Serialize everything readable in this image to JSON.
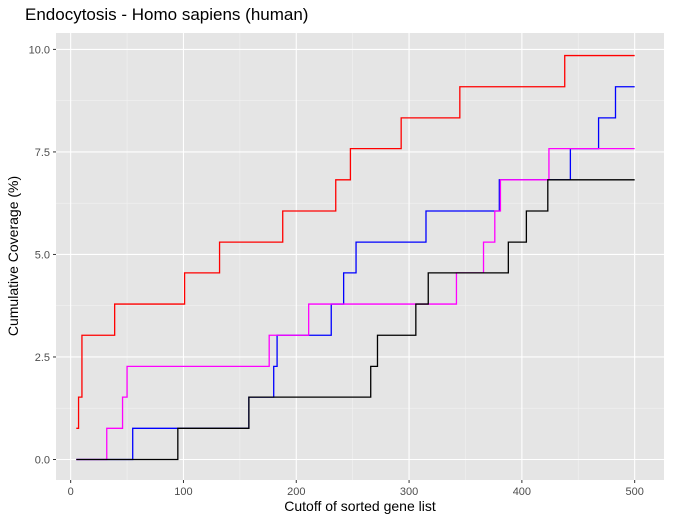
{
  "chart_data": {
    "type": "line",
    "title": "Endocytosis - Homo sapiens (human)",
    "xlabel": "Cutoff of sorted gene list",
    "ylabel": "Cumulative Coverage (%)",
    "xlim": [
      -13,
      526
    ],
    "ylim": [
      -0.5,
      10.4
    ],
    "x_ticks": [
      0,
      100,
      200,
      300,
      400,
      500
    ],
    "x_tick_labels": [
      "0",
      "100",
      "200",
      "300",
      "400",
      "500"
    ],
    "y_ticks": [
      0,
      2.5,
      5,
      7.5,
      10
    ],
    "y_tick_labels": [
      "0.0",
      "2.5",
      "5.0",
      "7.5",
      "10.0"
    ],
    "grid": true,
    "legend": "none",
    "colors": {
      "panel_background": "#e5e5e5",
      "grid_major": "#ffffff",
      "grid_minor": "#f2f2f2",
      "tick_text": "#4d4d4d"
    },
    "series": [
      {
        "color": "#ff0000",
        "steps": [
          [
            5,
            0.76
          ],
          [
            7,
            1.52
          ],
          [
            10,
            3.03
          ],
          [
            39,
            3.79
          ],
          [
            101,
            4.55
          ],
          [
            132,
            5.3
          ],
          [
            188,
            6.06
          ],
          [
            235,
            6.82
          ],
          [
            248,
            7.58
          ],
          [
            293,
            8.33
          ],
          [
            345,
            9.09
          ],
          [
            438,
            9.85
          ],
          [
            500,
            9.85
          ]
        ]
      },
      {
        "color": "#0000ff",
        "steps": [
          [
            5,
            0
          ],
          [
            55,
            0.76
          ],
          [
            158,
            1.52
          ],
          [
            180,
            2.27
          ],
          [
            183,
            3.03
          ],
          [
            231,
            3.79
          ],
          [
            242,
            4.55
          ],
          [
            253,
            5.3
          ],
          [
            315,
            6.06
          ],
          [
            380,
            6.82
          ],
          [
            443,
            7.58
          ],
          [
            468,
            8.33
          ],
          [
            483,
            9.09
          ],
          [
            500,
            9.09
          ]
        ]
      },
      {
        "color": "#ff00ff",
        "steps": [
          [
            5,
            0
          ],
          [
            32,
            0.76
          ],
          [
            46,
            1.52
          ],
          [
            50,
            2.27
          ],
          [
            176,
            3.03
          ],
          [
            211,
            3.79
          ],
          [
            342,
            4.55
          ],
          [
            366,
            5.3
          ],
          [
            376,
            6.06
          ],
          [
            381,
            6.82
          ],
          [
            424,
            7.58
          ],
          [
            500,
            7.58
          ]
        ]
      },
      {
        "color": "#000000",
        "steps": [
          [
            5,
            0
          ],
          [
            95,
            0.76
          ],
          [
            158,
            1.52
          ],
          [
            266,
            2.27
          ],
          [
            272,
            3.03
          ],
          [
            306,
            3.79
          ],
          [
            317,
            4.55
          ],
          [
            388,
            5.3
          ],
          [
            404,
            6.06
          ],
          [
            423,
            6.82
          ],
          [
            500,
            6.82
          ]
        ]
      }
    ]
  }
}
